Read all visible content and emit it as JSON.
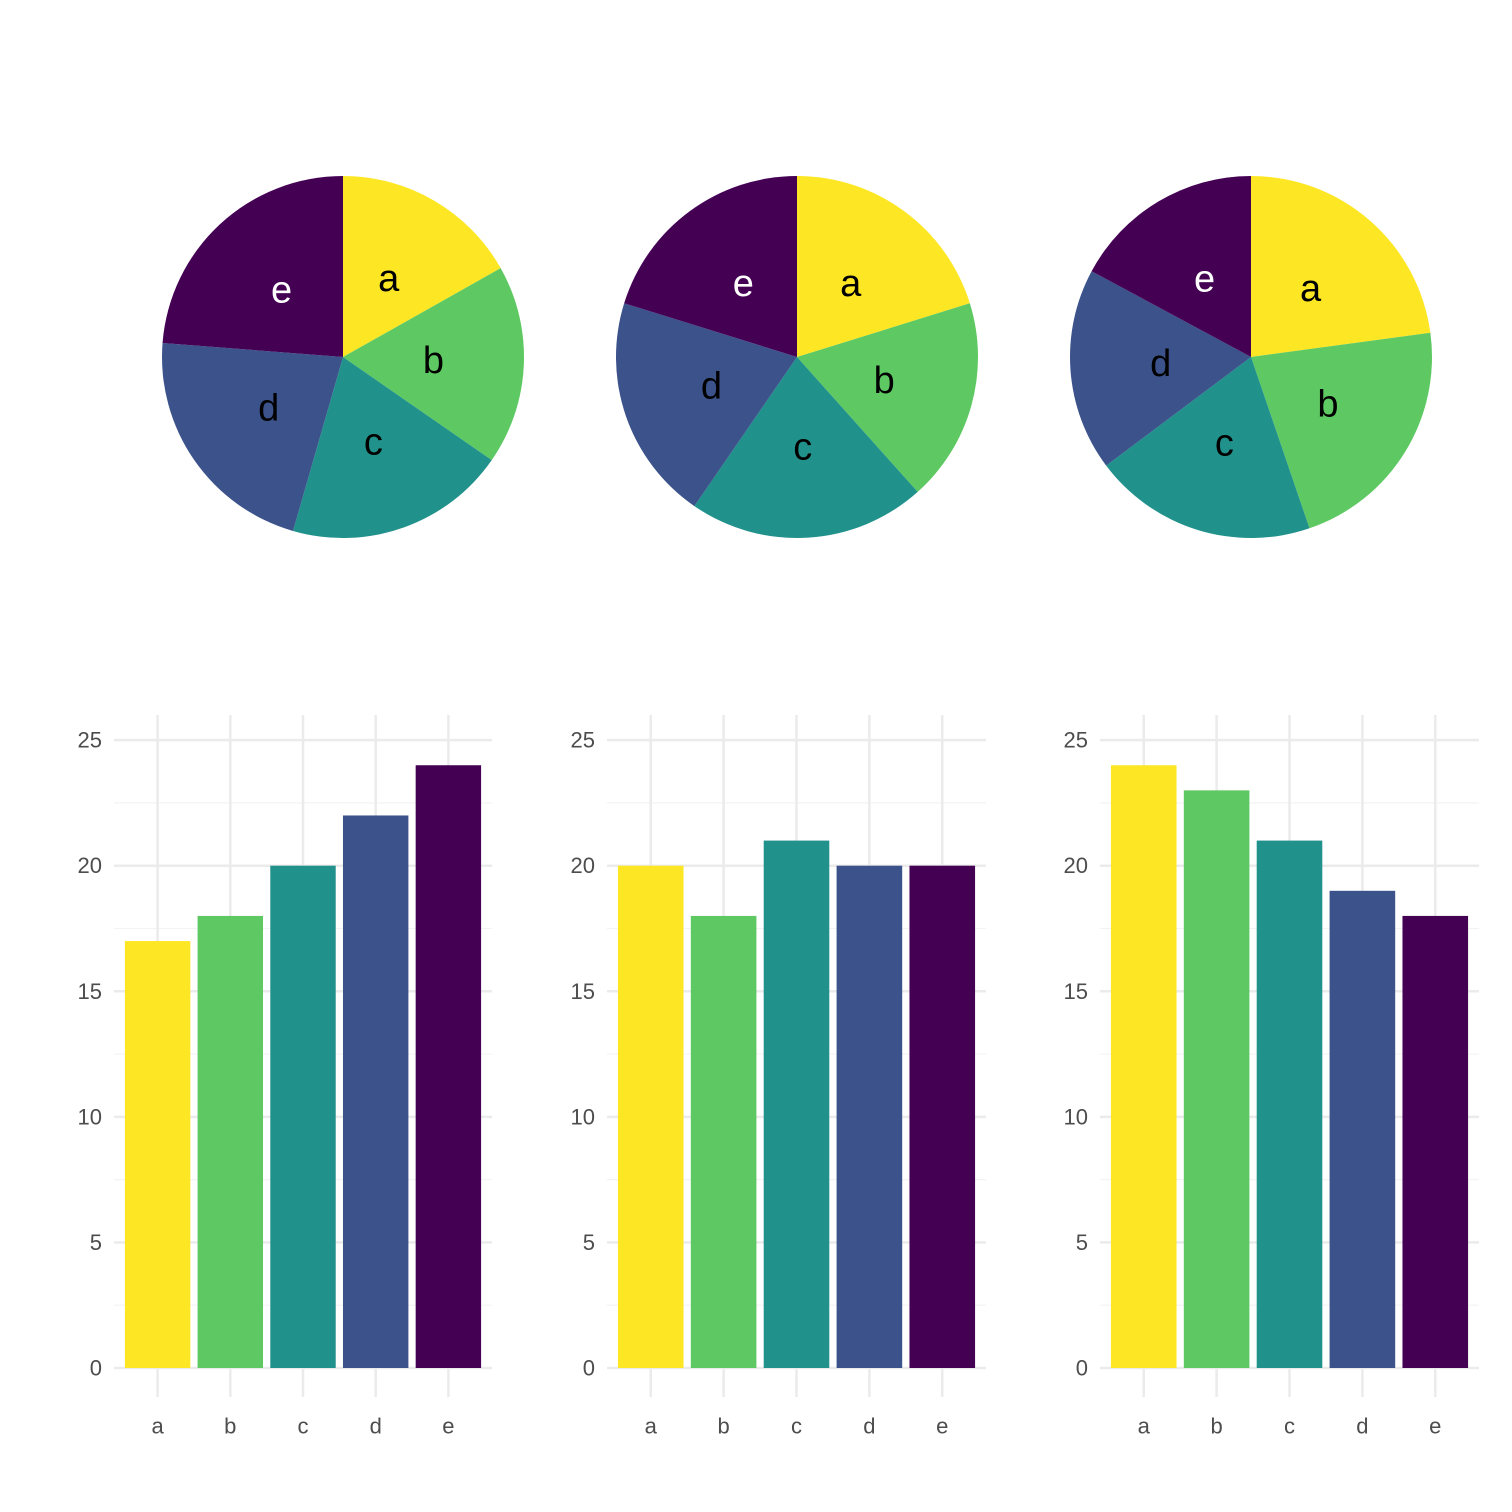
{
  "palette": {
    "a": "#fde725",
    "b": "#5ec962",
    "c": "#21918c",
    "d": "#3b528b",
    "e": "#440154"
  },
  "label_colors": {
    "a": "#000000",
    "b": "#000000",
    "c": "#000000",
    "d": "#000000",
    "e": "#ffffff"
  },
  "grid": {
    "major_color": "#ebebeb",
    "minor_color": "#f3f3f3"
  },
  "chart_data": [
    {
      "type": "pie",
      "categories": [
        "a",
        "b",
        "c",
        "d",
        "e"
      ],
      "values": [
        17,
        18,
        20,
        22,
        24
      ]
    },
    {
      "type": "pie",
      "categories": [
        "a",
        "b",
        "c",
        "d",
        "e"
      ],
      "values": [
        20,
        18,
        21,
        20,
        20
      ]
    },
    {
      "type": "pie",
      "categories": [
        "a",
        "b",
        "c",
        "d",
        "e"
      ],
      "values": [
        24,
        23,
        21,
        19,
        18
      ]
    },
    {
      "type": "bar",
      "categories": [
        "a",
        "b",
        "c",
        "d",
        "e"
      ],
      "values": [
        17,
        18,
        20,
        22,
        24
      ],
      "ylim": [
        0,
        26
      ],
      "yticks": [
        0,
        5,
        10,
        15,
        20,
        25
      ],
      "grid": true
    },
    {
      "type": "bar",
      "categories": [
        "a",
        "b",
        "c",
        "d",
        "e"
      ],
      "values": [
        20,
        18,
        21,
        20,
        20
      ],
      "ylim": [
        0,
        26
      ],
      "yticks": [
        0,
        5,
        10,
        15,
        20,
        25
      ],
      "grid": true
    },
    {
      "type": "bar",
      "categories": [
        "a",
        "b",
        "c",
        "d",
        "e"
      ],
      "values": [
        24,
        23,
        21,
        19,
        18
      ],
      "ylim": [
        0,
        26
      ],
      "yticks": [
        0,
        5,
        10,
        15,
        20,
        25
      ],
      "grid": true
    }
  ]
}
